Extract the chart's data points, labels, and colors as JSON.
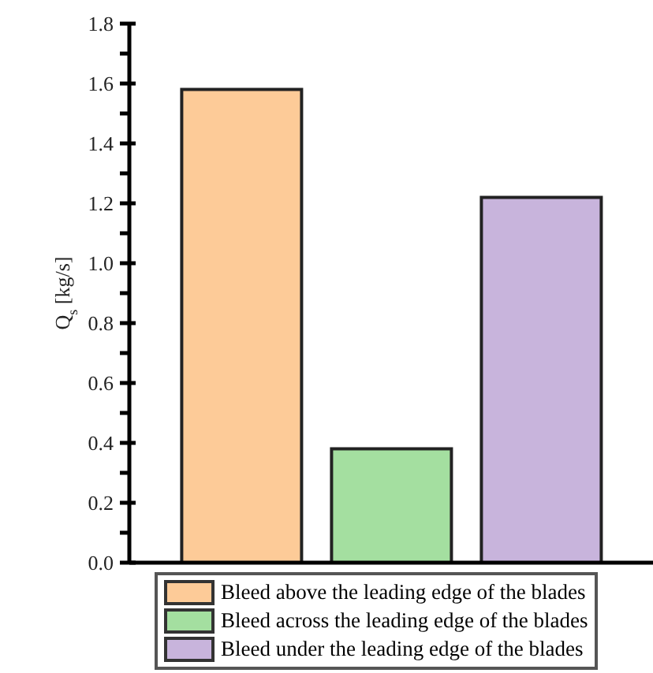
{
  "chart_data": {
    "type": "bar",
    "ylabel": "Q$_{s}$ [kg/s]",
    "categories": [
      null
    ],
    "series": [
      {
        "name": "Bleed above the leading edge of the blades",
        "color": "#fdcb98",
        "values": [
          1.58
        ]
      },
      {
        "name": "Bleed across the leading edge of the blades",
        "color": "#a4dfa0",
        "values": [
          0.38
        ]
      },
      {
        "name": "Bleed under the leading edge of the blades",
        "color": "#c8b4dc",
        "values": [
          1.22
        ]
      }
    ],
    "ylim": [
      0,
      1.8
    ],
    "yticks": [
      {
        "value": 0,
        "label": "0.0"
      },
      {
        "value": 0.1,
        "label": null
      },
      0.2,
      {
        "value": 0.3,
        "label": null
      },
      0.4,
      {
        "value": 0.5,
        "label": null
      },
      0.6,
      {
        "value": 0.7,
        "label": null
      },
      0.8,
      {
        "value": 0.9,
        "label": null
      },
      {
        "value": 1,
        "label": "1.0"
      },
      {
        "value": 1.1,
        "label": null
      },
      1.2,
      {
        "value": 1.3,
        "label": null
      },
      1.4,
      {
        "value": 1.5,
        "label": null
      },
      1.6,
      {
        "value": 1.7,
        "label": null
      },
      1.8
    ],
    "tick_labels": "y",
    "grid": false,
    "legend": "bottom"
  }
}
